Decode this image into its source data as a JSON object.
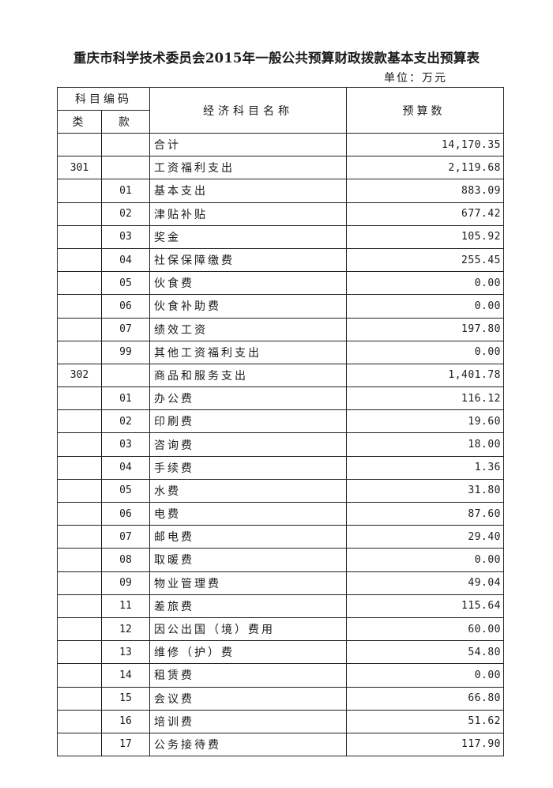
{
  "title": "重庆市科学技术委员会2015年一般公共预算财政拨款基本支出预算表",
  "unit": "单位：万元",
  "header": {
    "code_group": "科目编码",
    "class": "类",
    "item": "款",
    "name": "经济科目名称",
    "amount": "预算数"
  },
  "rows": [
    {
      "class": "",
      "item": "",
      "name": "合计",
      "amount": "14,170.35"
    },
    {
      "class": "301",
      "item": "",
      "name": "工资福利支出",
      "amount": "2,119.68"
    },
    {
      "class": "",
      "item": "01",
      "name": "基本支出",
      "amount": "883.09"
    },
    {
      "class": "",
      "item": "02",
      "name": "津贴补贴",
      "amount": "677.42"
    },
    {
      "class": "",
      "item": "03",
      "name": "奖金",
      "amount": "105.92"
    },
    {
      "class": "",
      "item": "04",
      "name": "社保保障缴费",
      "amount": "255.45"
    },
    {
      "class": "",
      "item": "05",
      "name": "伙食费",
      "amount": "0.00"
    },
    {
      "class": "",
      "item": "06",
      "name": "伙食补助费",
      "amount": "0.00"
    },
    {
      "class": "",
      "item": "07",
      "name": "绩效工资",
      "amount": "197.80"
    },
    {
      "class": "",
      "item": "99",
      "name": "其他工资福利支出",
      "amount": "0.00"
    },
    {
      "class": "302",
      "item": "",
      "name": "商品和服务支出",
      "amount": "1,401.78"
    },
    {
      "class": "",
      "item": "01",
      "name": "办公费",
      "amount": "116.12"
    },
    {
      "class": "",
      "item": "02",
      "name": "印刷费",
      "amount": "19.60"
    },
    {
      "class": "",
      "item": "03",
      "name": "咨询费",
      "amount": "18.00"
    },
    {
      "class": "",
      "item": "04",
      "name": "手续费",
      "amount": "1.36"
    },
    {
      "class": "",
      "item": "05",
      "name": "水费",
      "amount": "31.80"
    },
    {
      "class": "",
      "item": "06",
      "name": "电费",
      "amount": "87.60"
    },
    {
      "class": "",
      "item": "07",
      "name": "邮电费",
      "amount": "29.40"
    },
    {
      "class": "",
      "item": "08",
      "name": "取暖费",
      "amount": "0.00"
    },
    {
      "class": "",
      "item": "09",
      "name": "物业管理费",
      "amount": "49.04"
    },
    {
      "class": "",
      "item": "11",
      "name": "差旅费",
      "amount": "115.64"
    },
    {
      "class": "",
      "item": "12",
      "name": "因公出国（境）费用",
      "amount": "60.00"
    },
    {
      "class": "",
      "item": "13",
      "name": "维修（护）费",
      "amount": "54.80"
    },
    {
      "class": "",
      "item": "14",
      "name": "租赁费",
      "amount": "0.00"
    },
    {
      "class": "",
      "item": "15",
      "name": "会议费",
      "amount": "66.80"
    },
    {
      "class": "",
      "item": "16",
      "name": "培训费",
      "amount": "51.62"
    },
    {
      "class": "",
      "item": "17",
      "name": "公务接待费",
      "amount": "117.90"
    }
  ]
}
